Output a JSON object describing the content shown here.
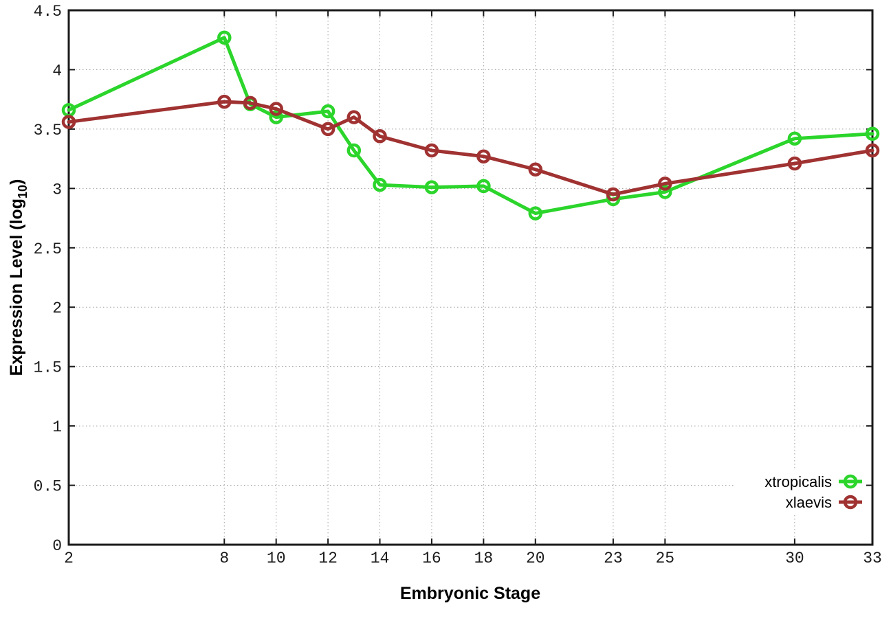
{
  "chart_data": {
    "type": "line",
    "title": "",
    "xlabel": "Embryonic Stage",
    "ylabel": "Expression Level (log10)",
    "ylabel_parts": {
      "pre": "Expression Level (log",
      "sub": "10",
      "post": ")"
    },
    "xlim": [
      2,
      33
    ],
    "ylim": [
      0,
      4.5
    ],
    "grid": true,
    "grid_style": "dotted",
    "legend_position": "bottom-right",
    "frame_color": "#1a1a1a",
    "grid_color": "#a0a0a0",
    "xticks": [
      2,
      8,
      10,
      12,
      14,
      16,
      18,
      20,
      23,
      25,
      30,
      33
    ],
    "xtick_labels": [
      "2",
      "8",
      "10",
      "12",
      "14",
      "16",
      "18",
      "20",
      "23",
      "25",
      "30",
      "33"
    ],
    "yticks": [
      0,
      0.5,
      1,
      1.5,
      2,
      2.5,
      3,
      3.5,
      4,
      4.5
    ],
    "ytick_labels": [
      "0",
      "0.5",
      "1",
      "1.5",
      "2",
      "2.5",
      "3",
      "3.5",
      "4",
      "4.5"
    ],
    "x": [
      2,
      8,
      9,
      10,
      12,
      13,
      14,
      16,
      18,
      20,
      23,
      25,
      30,
      33
    ],
    "series": [
      {
        "name": "xtropicalis",
        "color": "#2bd52b",
        "marker": "open-circle",
        "values": [
          3.66,
          4.27,
          3.71,
          3.6,
          3.65,
          3.32,
          3.03,
          3.01,
          3.02,
          2.79,
          2.91,
          2.97,
          3.42,
          3.46
        ]
      },
      {
        "name": "xlaevis",
        "color": "#a03232",
        "marker": "open-circle",
        "values": [
          3.56,
          3.73,
          3.72,
          3.67,
          3.5,
          3.6,
          3.44,
          3.32,
          3.27,
          3.16,
          2.95,
          3.04,
          3.21,
          3.32
        ]
      }
    ]
  }
}
